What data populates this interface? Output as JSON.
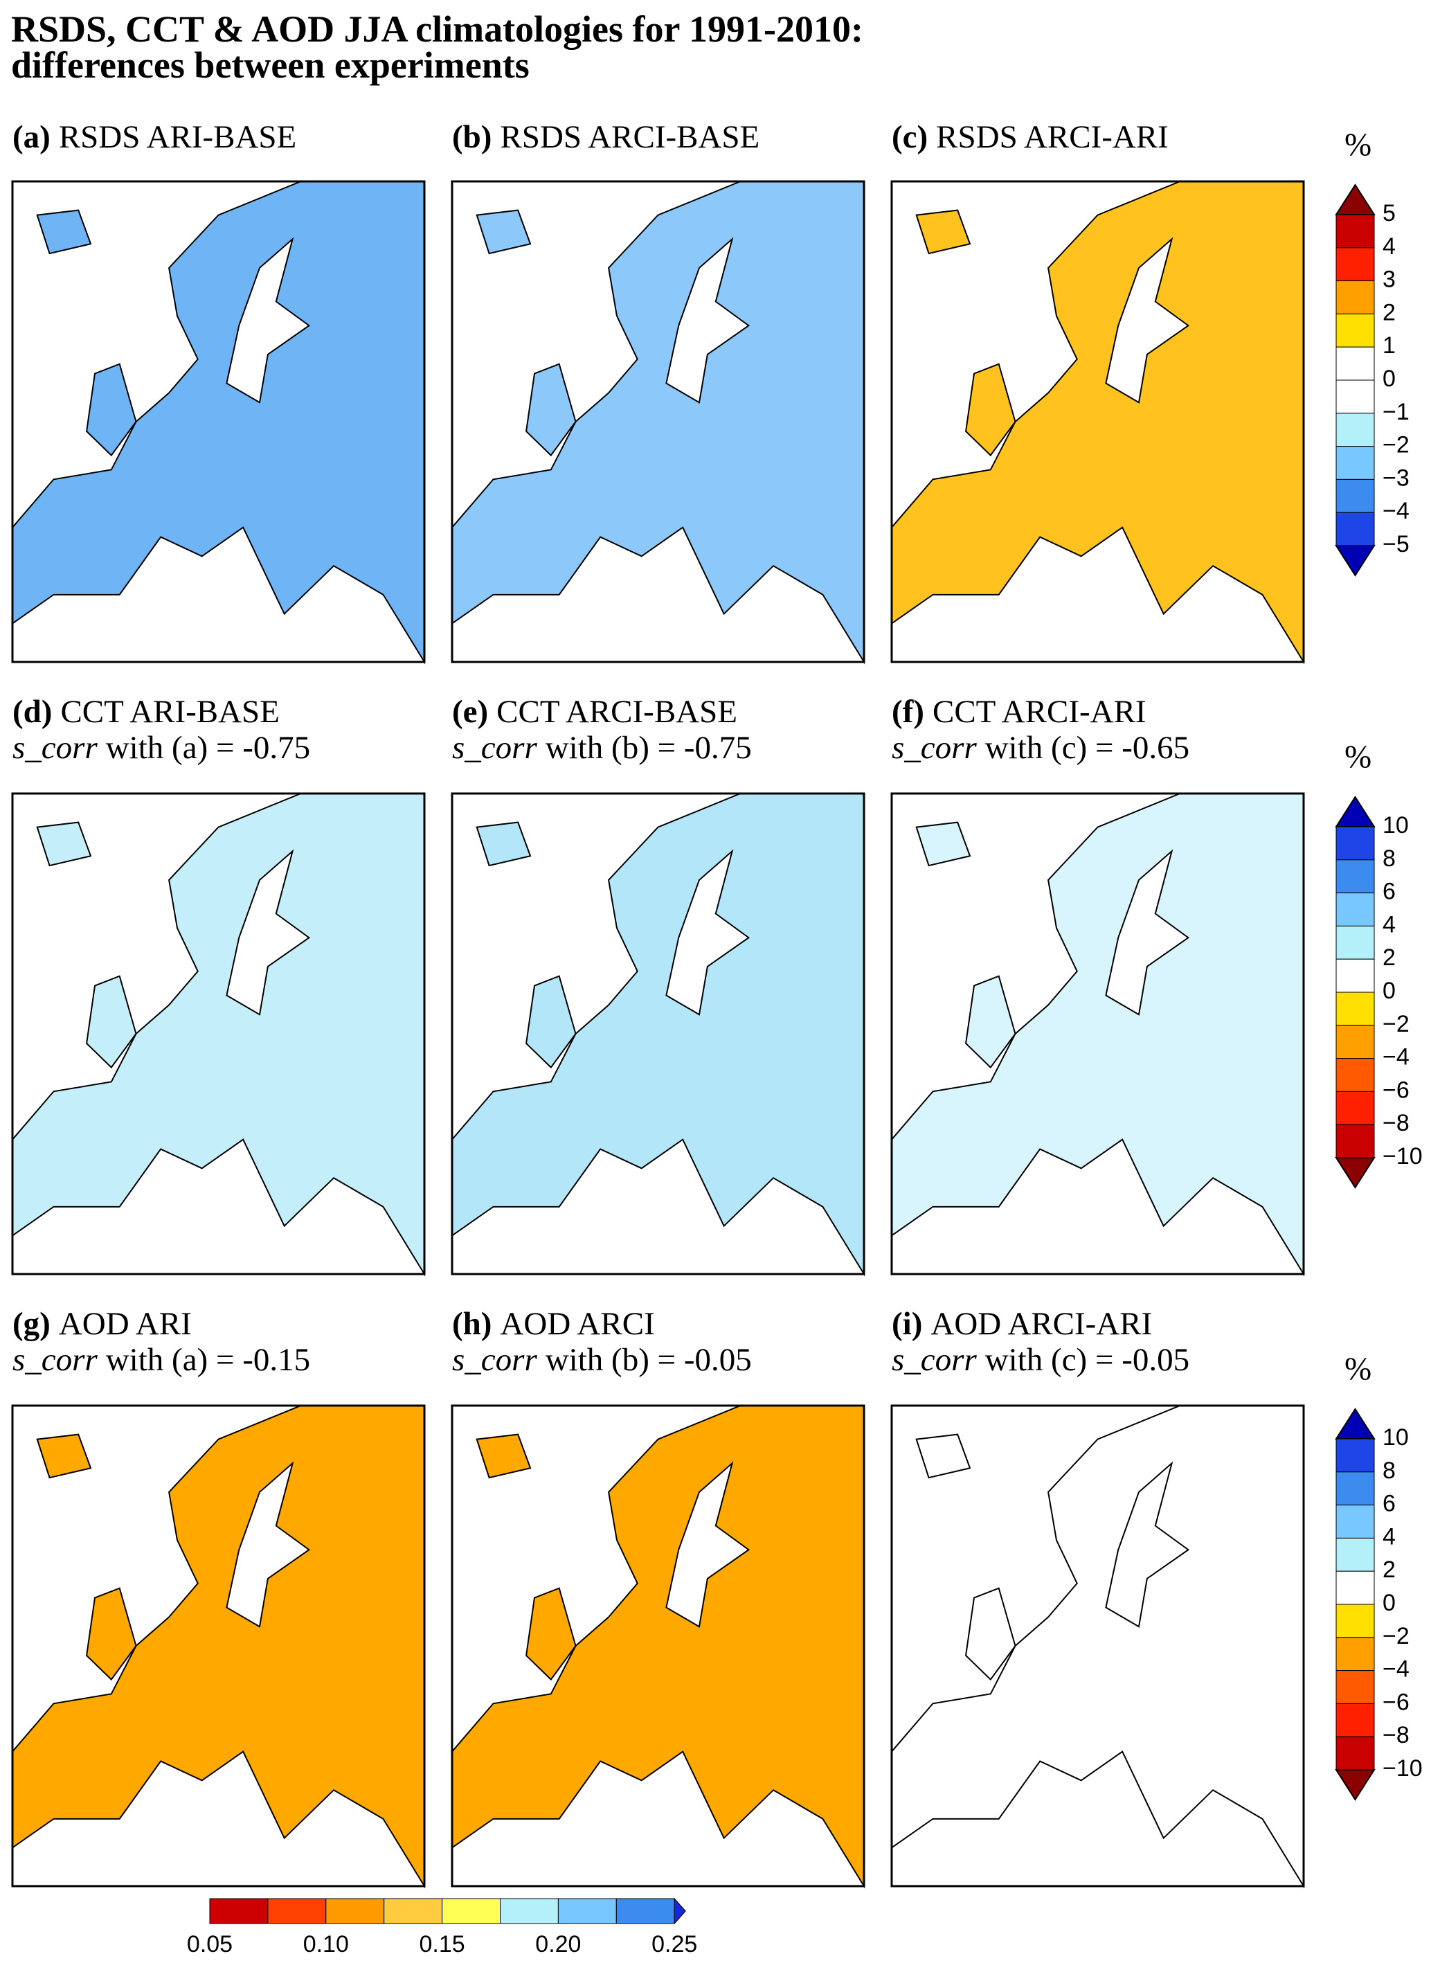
{
  "header": {
    "title_lines": [
      "RSDS, CCT & AOD JJA climatologies for 1991-2010:",
      "differences between experiments"
    ]
  },
  "panels": [
    {
      "label": "(a)",
      "title": "RSDS ARI-BASE",
      "color": "#6fb4f5"
    },
    {
      "label": "(b)",
      "title": "RSDS ARCI-BASE",
      "color": "#8cc8fa"
    },
    {
      "label": "(c)",
      "title": "RSDS ARCI-ARI",
      "color": "#ffc21e"
    },
    {
      "label": "(d)",
      "title": "CCT ARI-BASE",
      "stat_name": "s_corr",
      "stat_text": "with (a) = -0.75",
      "color": "#c4eefa"
    },
    {
      "label": "(e)",
      "title": "CCT ARCI-BASE",
      "stat_name": "s_corr",
      "stat_text": "with (b) = -0.75",
      "color": "#b4e6fa"
    },
    {
      "label": "(f)",
      "title": "CCT ARCI-ARI",
      "stat_name": "s_corr",
      "stat_text": "with (c) = -0.65",
      "color": "#d8f4fc"
    },
    {
      "label": "(g)",
      "title": "AOD ARI",
      "stat_name": "s_corr",
      "stat_text": "with (a) = -0.15",
      "color": "#ffa800"
    },
    {
      "label": "(h)",
      "title": "AOD ARCI",
      "stat_name": "s_corr",
      "stat_text": "with (b) = -0.05",
      "color": "#ffa800"
    },
    {
      "label": "(i)",
      "title": "AOD ARCI-ARI",
      "stat_name": "s_corr",
      "stat_text": "with (c) = -0.05",
      "color": "#ffffff"
    }
  ],
  "colorbars": [
    {
      "unit": "%",
      "labels": [
        "5",
        "4",
        "3",
        "2",
        "1",
        "0",
        "−1",
        "−2",
        "−3",
        "−4",
        "−5"
      ],
      "colors": [
        "#c80000",
        "#ff2000",
        "#ffa000",
        "#ffe000",
        "#ffffff",
        "#ffffff",
        "#b4f0fa",
        "#78c8ff",
        "#3c8cf0",
        "#1e46e6"
      ],
      "end_colors": [
        "#8b0000",
        "#0000b4"
      ]
    },
    {
      "unit": "%",
      "labels": [
        "10",
        "8",
        "6",
        "4",
        "2",
        "0",
        "−2",
        "−4",
        "−6",
        "−8",
        "−10"
      ],
      "colors": [
        "#1e46e6",
        "#3c8cf0",
        "#78c8ff",
        "#b4f0fa",
        "#ffffff",
        "#ffe000",
        "#ffa000",
        "#ff5a00",
        "#ff2000",
        "#c80000"
      ],
      "end_colors": [
        "#0000b4",
        "#8b0000"
      ]
    },
    {
      "unit": "%",
      "labels": [
        "10",
        "8",
        "6",
        "4",
        "2",
        "0",
        "−2",
        "−4",
        "−6",
        "−8",
        "−10"
      ],
      "colors": [
        "#1e46e6",
        "#3c8cf0",
        "#78c8ff",
        "#b4f0fa",
        "#ffffff",
        "#ffe000",
        "#ffa000",
        "#ff5a00",
        "#ff2000",
        "#c80000"
      ],
      "end_colors": [
        "#0000b4",
        "#8b0000"
      ]
    }
  ],
  "aod_colorbar": {
    "labels": [
      "0.05",
      "0.10",
      "0.15",
      "0.20",
      "0.25"
    ],
    "colors": [
      "#cc0000",
      "#ff4000",
      "#ff9a00",
      "#ffcc40",
      "#ffff55",
      "#b4f0fa",
      "#78c8ff",
      "#3c8cf0"
    ],
    "end_color": "#1428dc"
  }
}
